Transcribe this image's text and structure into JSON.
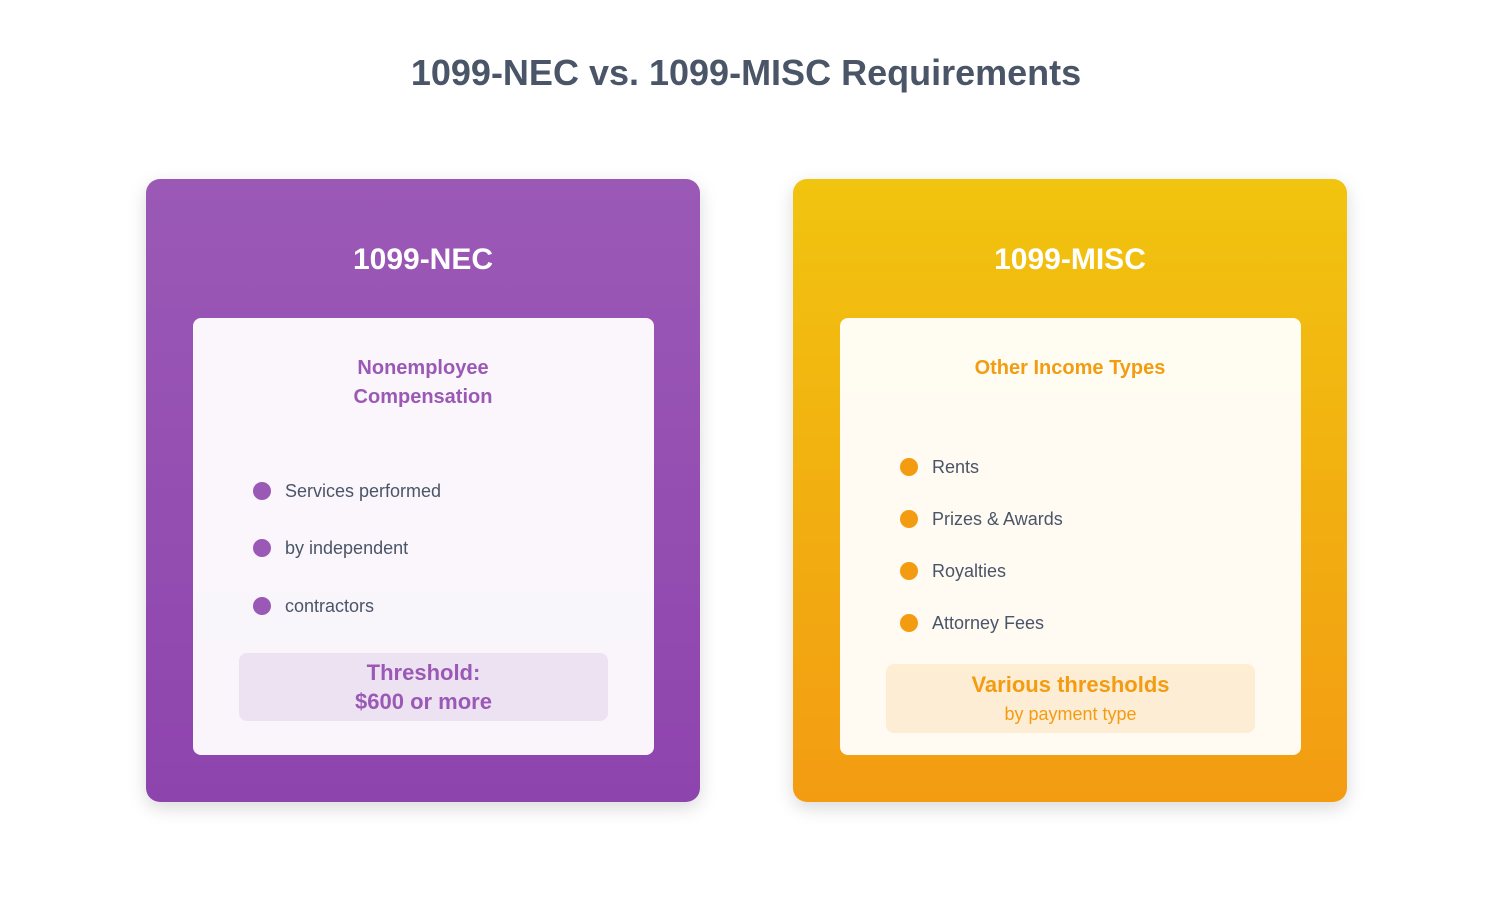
{
  "header": {
    "title": "1099-NEC vs. 1099-MISC Requirements"
  },
  "cards": [
    {
      "title": "1099-NEC",
      "subtitle": "Nonemployee Compensation",
      "items": [
        "Services performed",
        "by independent",
        "contractors"
      ],
      "threshold": [
        "Threshold:",
        "$600 or more"
      ]
    },
    {
      "title": "1099-MISC",
      "subtitle": "Other Income Types",
      "items": [
        "Rents",
        "Prizes & Awards",
        "Royalties",
        "Attorney Fees"
      ],
      "threshold": [
        "Various thresholds",
        "by payment type"
      ]
    }
  ]
}
